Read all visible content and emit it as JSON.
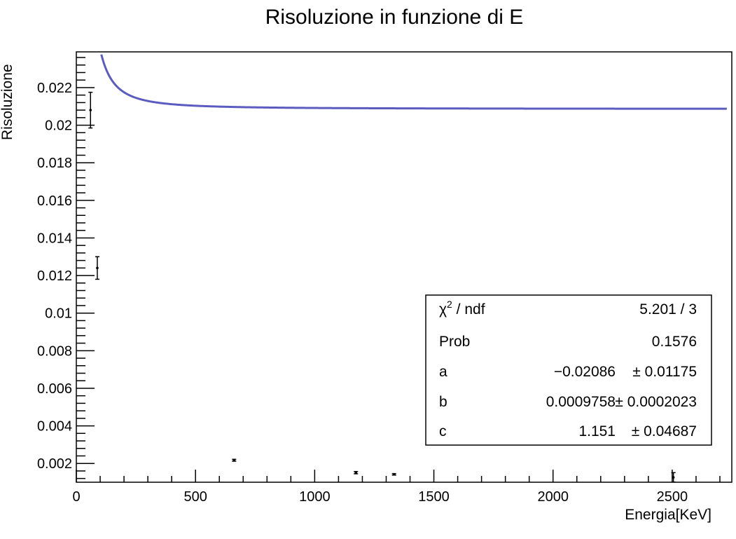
{
  "chart_data": {
    "type": "scatter",
    "title": "Risoluzione in funzione di E",
    "xlabel": "Energia[KeV]",
    "ylabel": "Risoluzione",
    "xlim": [
      0,
      2750
    ],
    "ylim": [
      0.001,
      0.0239
    ],
    "x_ticks": [
      0,
      500,
      1000,
      1500,
      2000,
      2500
    ],
    "x_tick_labels": [
      "0",
      "500",
      "1000",
      "1500",
      "2000",
      "2500"
    ],
    "y_ticks": [
      0.002,
      0.004,
      0.006,
      0.008,
      0.01,
      0.012,
      0.014,
      0.016,
      0.018,
      0.02,
      0.022
    ],
    "y_tick_labels": [
      "0.002",
      "0.004",
      "0.006",
      "0.008",
      "0.01",
      "0.012",
      "0.014",
      "0.016",
      "0.018",
      "0.02",
      "0.022"
    ],
    "points": [
      {
        "x": 59.5,
        "y": 0.0208,
        "err": 0.00095
      },
      {
        "x": 88,
        "y": 0.0124,
        "err": 0.0006
      },
      {
        "x": 662,
        "y": 0.00217,
        "err": 5e-05
      },
      {
        "x": 1173,
        "y": 0.00151,
        "err": 6e-05
      },
      {
        "x": 1333,
        "y": 0.00142,
        "err": 4e-05
      },
      {
        "x": 2505,
        "y": 0.00126,
        "err": 0.00025
      }
    ],
    "fit": {
      "curve_color": "#5c5cc0",
      "parameters": {
        "a": -0.02086,
        "b": 0.0009758,
        "c": 1.151
      }
    },
    "stats_box": {
      "rows": [
        {
          "label": "χ",
          "label_sup": "2",
          "label_rest": " / ndf",
          "value": "5.201 / 3"
        },
        {
          "label": "Prob",
          "value": "0.1576"
        },
        {
          "label": "a",
          "value": "−0.02086",
          "error": "± 0.01175"
        },
        {
          "label": "b",
          "value": "0.0009758",
          "error": "± 0.0002023"
        },
        {
          "label": "c",
          "value": "1.151",
          "error": "± 0.04687"
        }
      ]
    },
    "grid": false,
    "legend": "none"
  }
}
